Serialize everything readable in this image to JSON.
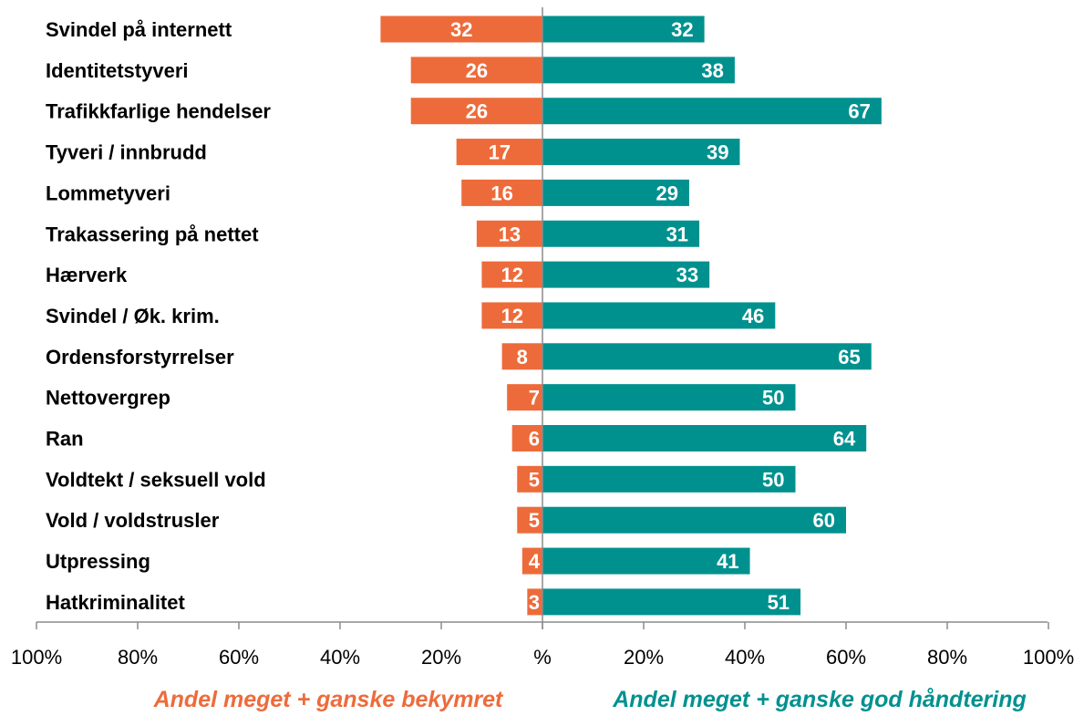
{
  "chart_data": {
    "type": "bar",
    "orientation": "horizontal-diverging",
    "categories": [
      "Svindel på internett",
      "Identitetstyveri",
      "Trafikkfarlige hendelser",
      "Tyveri / innbrudd",
      "Lommetyveri",
      "Trakassering på nettet",
      "Hærverk",
      "Svindel / Øk. krim.",
      "Ordensforstyrrelser",
      "Nettovergrep",
      "Ran",
      "Voldtekt / seksuell vold",
      "Vold / voldstrusler",
      "Utpressing",
      "Hatkriminalitet"
    ],
    "series": [
      {
        "name": "Andel meget + ganske bekymret",
        "side": "left",
        "color": "#ED6B3B",
        "values": [
          32,
          26,
          26,
          17,
          16,
          13,
          12,
          12,
          8,
          7,
          6,
          5,
          5,
          4,
          3
        ]
      },
      {
        "name": "Andel meget + ganske god håndtering",
        "side": "right",
        "color": "#00918F",
        "values": [
          32,
          38,
          67,
          39,
          29,
          31,
          33,
          46,
          65,
          50,
          64,
          50,
          60,
          41,
          51
        ]
      }
    ],
    "x_ticks": [
      "100%",
      "80%",
      "60%",
      "40%",
      "20%",
      "%",
      "20%",
      "40%",
      "60%",
      "80%",
      "100%"
    ],
    "x_tick_values": [
      -100,
      -80,
      -60,
      -40,
      -20,
      0,
      20,
      40,
      60,
      80,
      100
    ],
    "xlim": [
      -100,
      100
    ],
    "grid": false,
    "legend_position": "bottom",
    "axis_color": "#8C8C8C"
  }
}
